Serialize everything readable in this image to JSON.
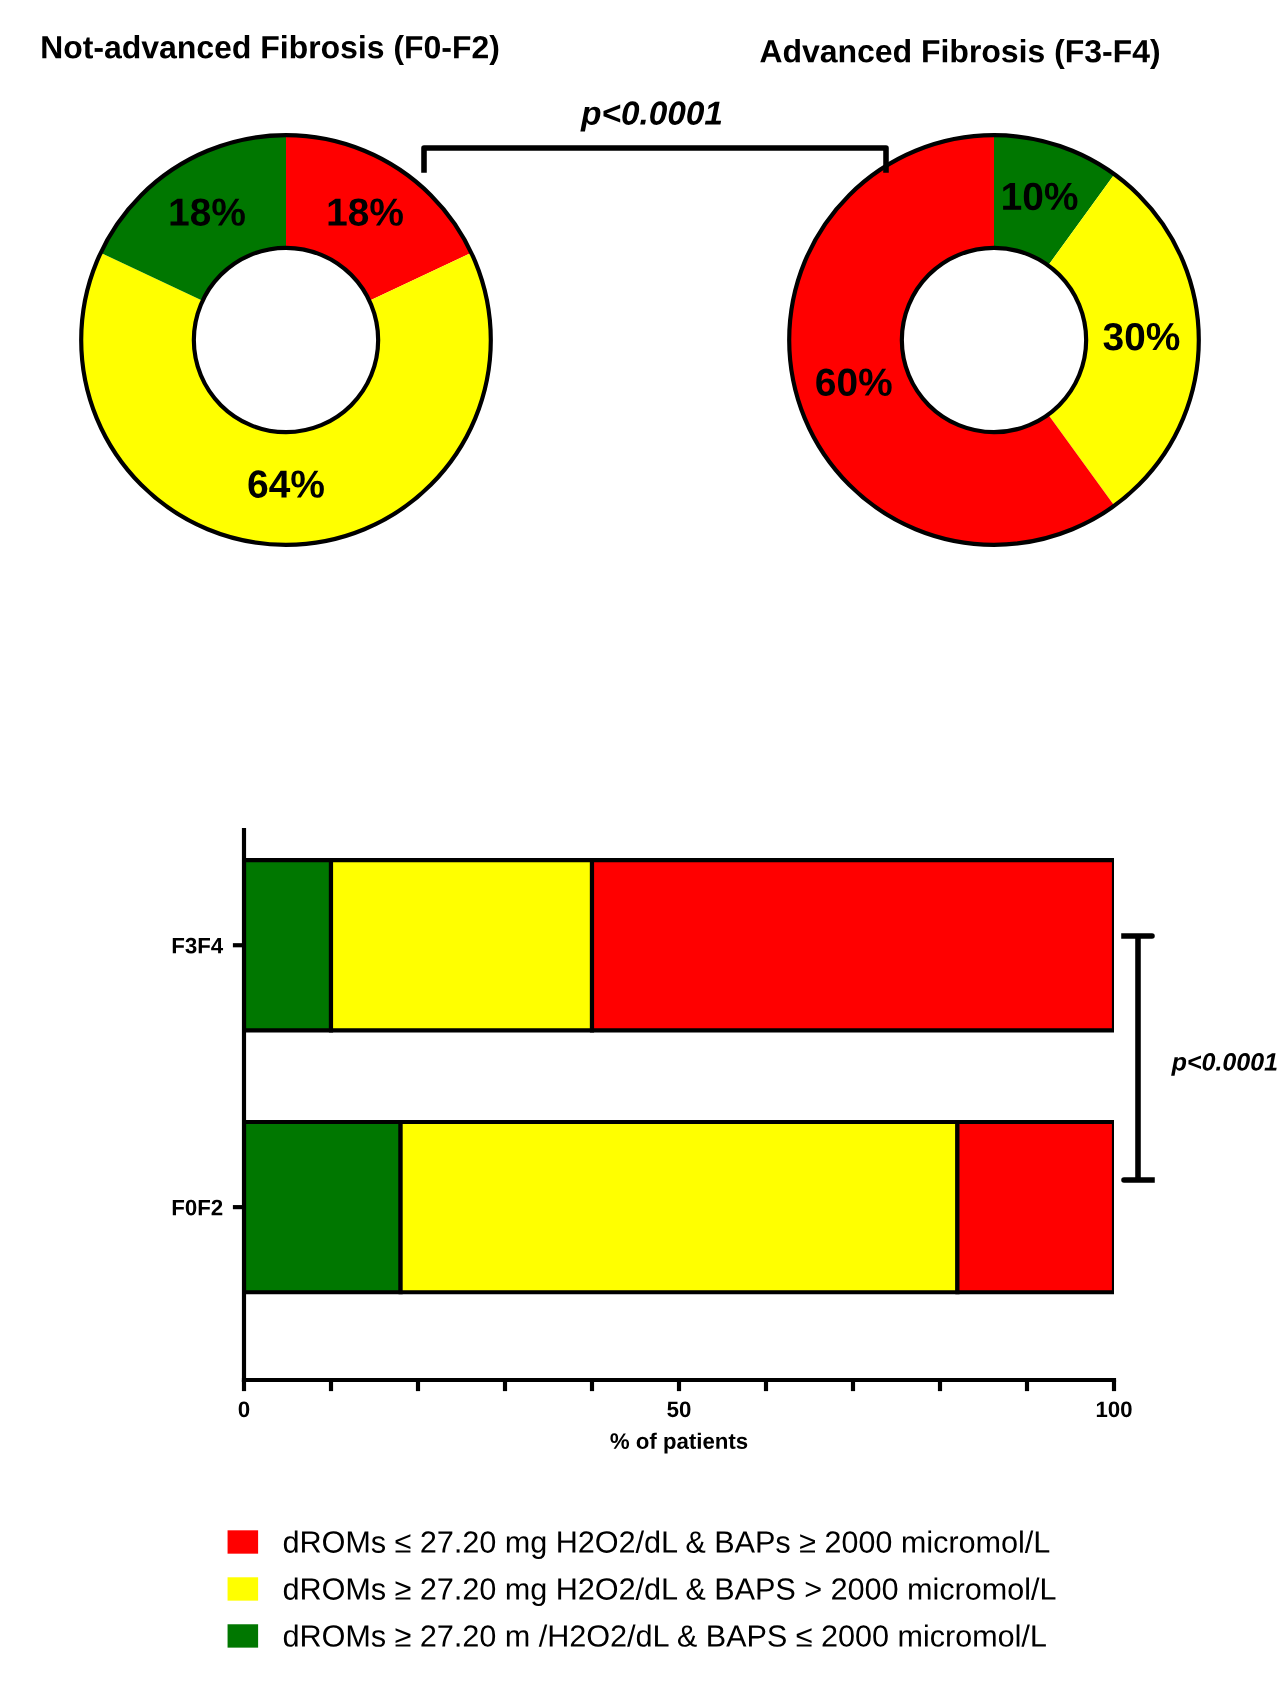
{
  "chart_data": [
    {
      "type": "donut",
      "title": "Not-advanced Fibrosis (F0-F2)",
      "categories": [
        null,
        null,
        null
      ],
      "values": [
        18,
        64,
        18
      ],
      "colors": [
        "#ff0000",
        "#ffff00",
        "#007700"
      ],
      "value_labels": [
        "18%",
        "64%",
        "18%"
      ],
      "annotations": [
        "p<0.0001"
      ]
    },
    {
      "type": "donut",
      "title": "Advanced Fibrosis (F3-F4)",
      "categories": [
        null,
        null,
        null
      ],
      "values": [
        10,
        30,
        60
      ],
      "colors": [
        "#007700",
        "#ffff00",
        "#ff0000"
      ],
      "value_labels": [
        "10%",
        "30%",
        "60%"
      ]
    },
    {
      "type": "bar",
      "orientation": "horizontal",
      "stacked": true,
      "categories": [
        "F3F4",
        "F0F2"
      ],
      "xlabel": "% of patients",
      "xlim": [
        0,
        100
      ],
      "xticks": [
        0,
        {
          "value": 10,
          "label": null
        },
        {
          "value": 20,
          "label": null
        },
        {
          "value": 30,
          "label": null
        },
        {
          "value": 40,
          "label": null
        },
        50,
        {
          "value": 60,
          "label": null
        },
        {
          "value": 70,
          "label": null
        },
        {
          "value": 80,
          "label": null
        },
        {
          "value": 90,
          "label": null
        },
        100
      ],
      "series": [
        {
          "name": "dROMs ≥ 27.20 m /H2O2/dL & BAPS ≤ 2000 micromol/L",
          "color": "#007700",
          "values": [
            10,
            18
          ]
        },
        {
          "name": "dROMs ≥ 27.20 mg H2O2/dL & BAPS > 2000 micromol/L",
          "color": "#ffff00",
          "values": [
            30,
            64
          ]
        },
        {
          "name": "dROMs ≤ 27.20 mg H2O2/dL & BAPs ≥ 2000 micromol/L",
          "color": "#ff0000",
          "values": [
            60,
            18
          ]
        }
      ],
      "legend": "bottom",
      "annotations": [
        "p<0.0001"
      ]
    }
  ]
}
